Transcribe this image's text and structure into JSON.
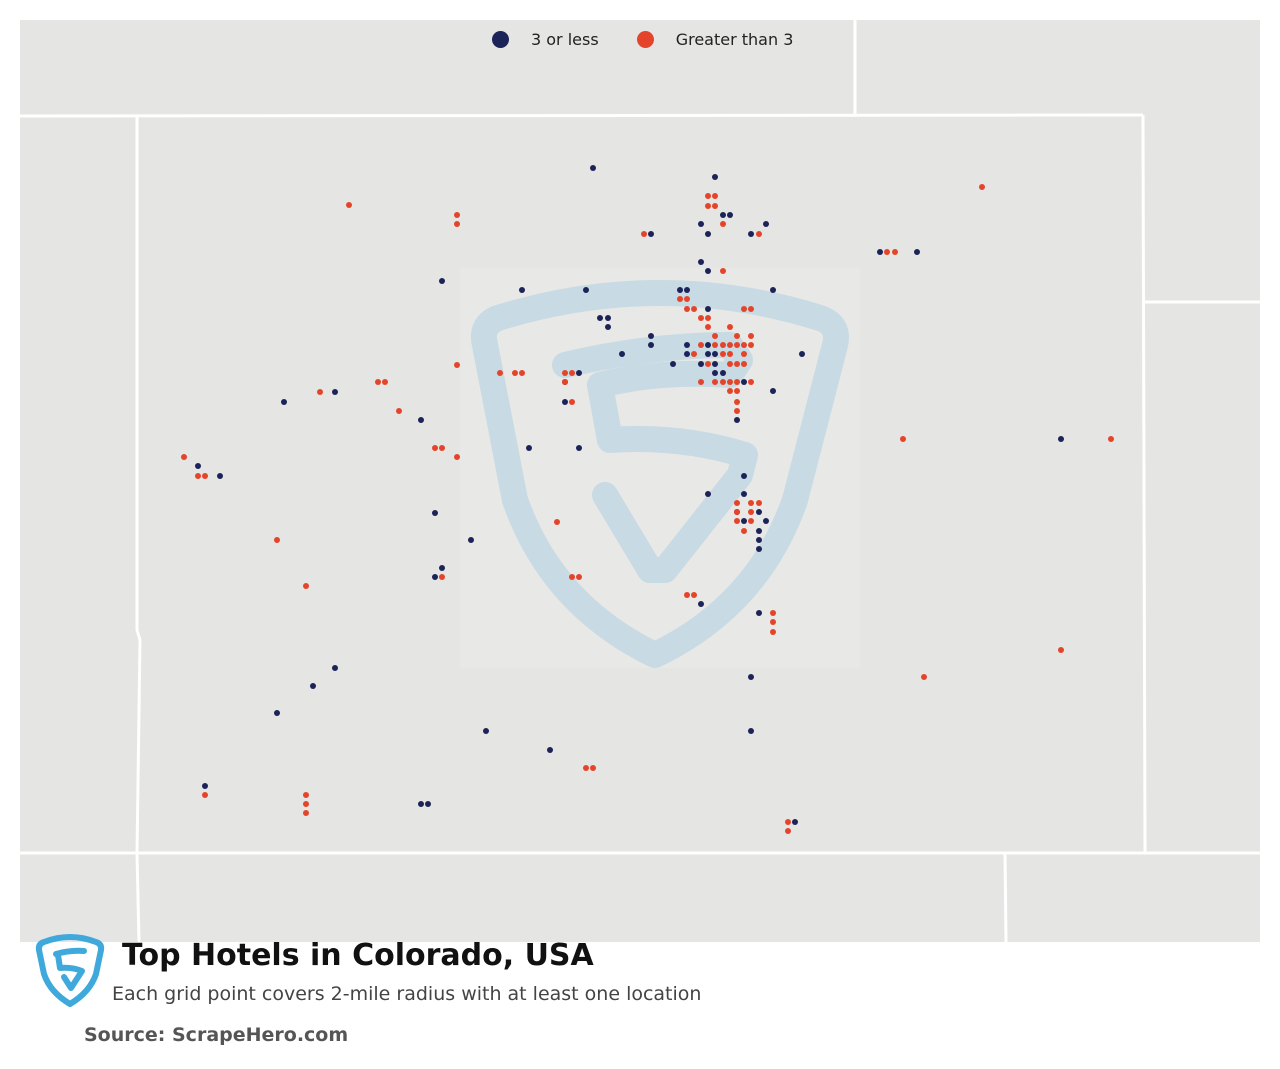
{
  "legend": {
    "items": [
      {
        "label": "3 or less",
        "color": "#1b2358"
      },
      {
        "label": "Greater than 3",
        "color": "#e4452a"
      }
    ]
  },
  "title": "Top Hotels in Colorado, USA",
  "subtitle": "Each grid point covers 2-mile radius with at least one location",
  "source": "Source: ScrapeHero.com",
  "colors": {
    "land": "#e5e5e3",
    "border": "#ffffff",
    "watermark": "#c8dae3",
    "logo": "#3fa9dc"
  },
  "points": {
    "low": [
      [
        593,
        168
      ],
      [
        715,
        177
      ],
      [
        701,
        224
      ],
      [
        708,
        234
      ],
      [
        723,
        215
      ],
      [
        730,
        215
      ],
      [
        751,
        234
      ],
      [
        766,
        224
      ],
      [
        651,
        234
      ],
      [
        701,
        262
      ],
      [
        708,
        271
      ],
      [
        880,
        252
      ],
      [
        917,
        252
      ],
      [
        442,
        281
      ],
      [
        522,
        290
      ],
      [
        586,
        290
      ],
      [
        680,
        290
      ],
      [
        687,
        290
      ],
      [
        773,
        290
      ],
      [
        708,
        309
      ],
      [
        600,
        318
      ],
      [
        608,
        318
      ],
      [
        608,
        327
      ],
      [
        651,
        336
      ],
      [
        651,
        345
      ],
      [
        687,
        345
      ],
      [
        708,
        345
      ],
      [
        687,
        354
      ],
      [
        708,
        354
      ],
      [
        715,
        354
      ],
      [
        622,
        354
      ],
      [
        802,
        354
      ],
      [
        673,
        364
      ],
      [
        701,
        364
      ],
      [
        715,
        364
      ],
      [
        579,
        373
      ],
      [
        565,
        382
      ],
      [
        715,
        373
      ],
      [
        723,
        373
      ],
      [
        744,
        382
      ],
      [
        773,
        391
      ],
      [
        335,
        392
      ],
      [
        284,
        402
      ],
      [
        565,
        402
      ],
      [
        421,
        420
      ],
      [
        737,
        420
      ],
      [
        529,
        448
      ],
      [
        579,
        448
      ],
      [
        1061,
        439
      ],
      [
        198,
        466
      ],
      [
        220,
        476
      ],
      [
        744,
        476
      ],
      [
        708,
        494
      ],
      [
        744,
        494
      ],
      [
        737,
        512
      ],
      [
        744,
        521
      ],
      [
        759,
        512
      ],
      [
        766,
        521
      ],
      [
        759,
        531
      ],
      [
        759,
        540
      ],
      [
        759,
        549
      ],
      [
        435,
        513
      ],
      [
        471,
        540
      ],
      [
        442,
        568
      ],
      [
        435,
        577
      ],
      [
        701,
        604
      ],
      [
        759,
        613
      ],
      [
        335,
        668
      ],
      [
        313,
        686
      ],
      [
        751,
        677
      ],
      [
        277,
        713
      ],
      [
        486,
        731
      ],
      [
        751,
        731
      ],
      [
        550,
        750
      ],
      [
        205,
        786
      ],
      [
        421,
        804
      ],
      [
        428,
        804
      ],
      [
        795,
        822
      ]
    ],
    "high": [
      [
        708,
        196
      ],
      [
        715,
        196
      ],
      [
        708,
        206
      ],
      [
        715,
        206
      ],
      [
        723,
        224
      ],
      [
        759,
        234
      ],
      [
        644,
        234
      ],
      [
        457,
        215
      ],
      [
        457,
        224
      ],
      [
        349,
        205
      ],
      [
        982,
        187
      ],
      [
        887,
        252
      ],
      [
        895,
        252
      ],
      [
        723,
        271
      ],
      [
        680,
        299
      ],
      [
        687,
        299
      ],
      [
        687,
        309
      ],
      [
        694,
        309
      ],
      [
        701,
        318
      ],
      [
        708,
        318
      ],
      [
        744,
        309
      ],
      [
        751,
        309
      ],
      [
        708,
        327
      ],
      [
        730,
        327
      ],
      [
        715,
        336
      ],
      [
        737,
        336
      ],
      [
        751,
        336
      ],
      [
        701,
        345
      ],
      [
        715,
        345
      ],
      [
        723,
        345
      ],
      [
        730,
        345
      ],
      [
        737,
        345
      ],
      [
        744,
        345
      ],
      [
        751,
        345
      ],
      [
        694,
        354
      ],
      [
        723,
        354
      ],
      [
        730,
        354
      ],
      [
        744,
        354
      ],
      [
        708,
        364
      ],
      [
        730,
        364
      ],
      [
        737,
        364
      ],
      [
        744,
        364
      ],
      [
        701,
        382
      ],
      [
        715,
        382
      ],
      [
        723,
        382
      ],
      [
        730,
        382
      ],
      [
        737,
        382
      ],
      [
        751,
        382
      ],
      [
        730,
        391
      ],
      [
        737,
        391
      ],
      [
        737,
        402
      ],
      [
        737,
        411
      ],
      [
        457,
        365
      ],
      [
        500,
        373
      ],
      [
        515,
        373
      ],
      [
        522,
        373
      ],
      [
        565,
        373
      ],
      [
        572,
        373
      ],
      [
        565,
        382
      ],
      [
        572,
        402
      ],
      [
        378,
        382
      ],
      [
        385,
        382
      ],
      [
        320,
        392
      ],
      [
        399,
        411
      ],
      [
        435,
        448
      ],
      [
        442,
        448
      ],
      [
        457,
        457
      ],
      [
        903,
        439
      ],
      [
        1111,
        439
      ],
      [
        184,
        457
      ],
      [
        198,
        476
      ],
      [
        205,
        476
      ],
      [
        737,
        503
      ],
      [
        751,
        503
      ],
      [
        759,
        503
      ],
      [
        737,
        512
      ],
      [
        751,
        512
      ],
      [
        737,
        521
      ],
      [
        751,
        521
      ],
      [
        744,
        531
      ],
      [
        557,
        522
      ],
      [
        277,
        540
      ],
      [
        442,
        577
      ],
      [
        306,
        586
      ],
      [
        572,
        577
      ],
      [
        579,
        577
      ],
      [
        687,
        595
      ],
      [
        694,
        595
      ],
      [
        773,
        613
      ],
      [
        773,
        622
      ],
      [
        773,
        632
      ],
      [
        1061,
        650
      ],
      [
        924,
        677
      ],
      [
        586,
        768
      ],
      [
        593,
        768
      ],
      [
        205,
        795
      ],
      [
        306,
        795
      ],
      [
        306,
        804
      ],
      [
        306,
        813
      ],
      [
        788,
        822
      ],
      [
        788,
        831
      ]
    ]
  }
}
